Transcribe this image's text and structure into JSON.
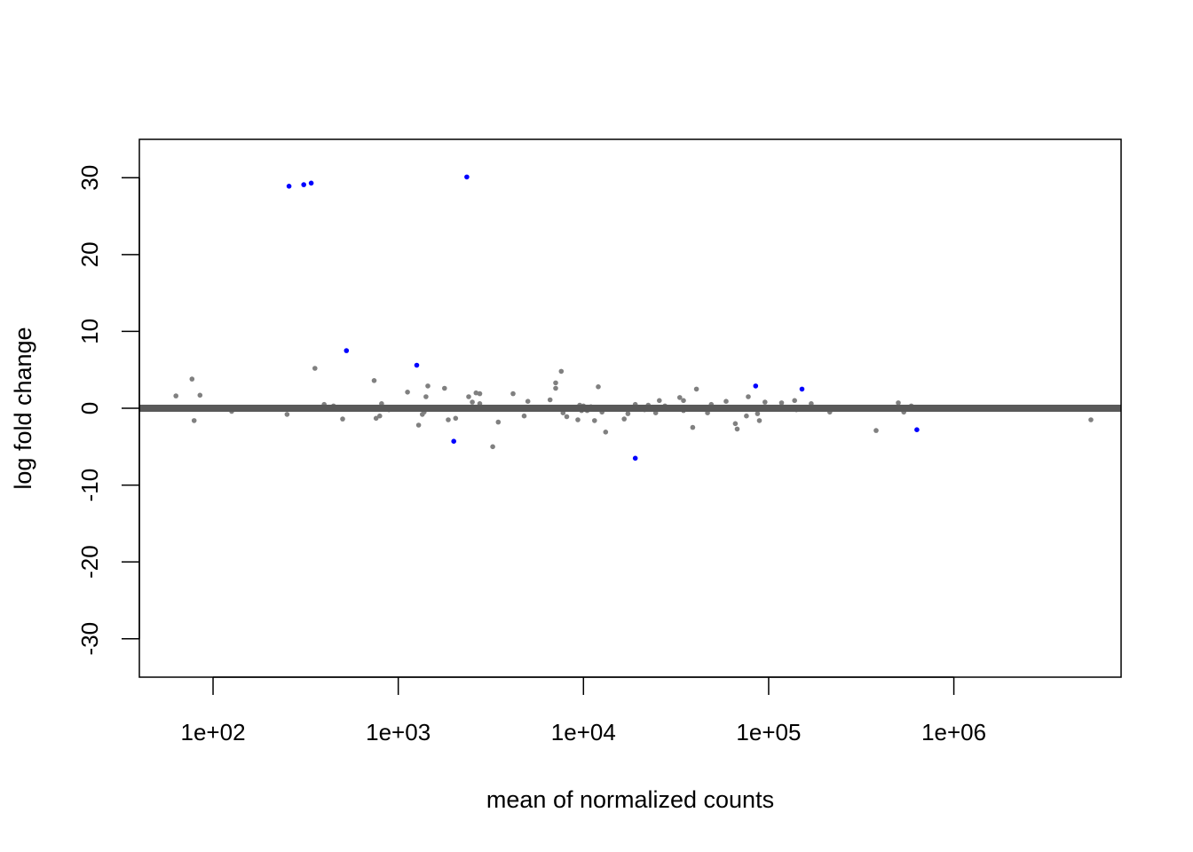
{
  "chart_data": {
    "type": "scatter",
    "title": "",
    "xlabel": "mean of normalized counts",
    "ylabel": "log fold change",
    "xscale": "log",
    "xlim": [
      40,
      8000000
    ],
    "ylim": [
      -35,
      35
    ],
    "xticks": [
      {
        "value": 100,
        "label": "1e+02"
      },
      {
        "value": 1000,
        "label": "1e+03"
      },
      {
        "value": 10000,
        "label": "1e+04"
      },
      {
        "value": 100000,
        "label": "1e+05"
      },
      {
        "value": 1000000,
        "label": "1e+06"
      }
    ],
    "yticks": [
      {
        "value": -30,
        "label": "-30"
      },
      {
        "value": -20,
        "label": "-20"
      },
      {
        "value": -10,
        "label": "-10"
      },
      {
        "value": 0,
        "label": "0"
      },
      {
        "value": 10,
        "label": "10"
      },
      {
        "value": 20,
        "label": "20"
      },
      {
        "value": 30,
        "label": "30"
      }
    ],
    "reference_line": {
      "y": 0,
      "color": "#595959"
    },
    "box": true,
    "grid": false,
    "series": [
      {
        "color": "#808080",
        "points": [
          [
            63,
            1.6
          ],
          [
            77,
            3.8
          ],
          [
            79,
            -1.6
          ],
          [
            85,
            1.7
          ],
          [
            126,
            -0.4
          ],
          [
            251,
            -0.8
          ],
          [
            355,
            5.2
          ],
          [
            398,
            0.5
          ],
          [
            447,
            0.3
          ],
          [
            501,
            -1.4
          ],
          [
            741,
            3.6
          ],
          [
            759,
            -1.3
          ],
          [
            794,
            -1.0
          ],
          [
            813,
            0.6
          ],
          [
            891,
            -0.2
          ],
          [
            1122,
            2.1
          ],
          [
            1288,
            -2.2
          ],
          [
            1349,
            -0.8
          ],
          [
            1380,
            -0.5
          ],
          [
            1412,
            1.5
          ],
          [
            1445,
            2.9
          ],
          [
            1778,
            2.6
          ],
          [
            1862,
            -1.5
          ],
          [
            2041,
            -1.3
          ],
          [
            2399,
            1.5
          ],
          [
            2512,
            0.8
          ],
          [
            2630,
            2.0
          ],
          [
            2754,
            1.9
          ],
          [
            2754,
            0.6
          ],
          [
            3236,
            -5.0
          ],
          [
            3467,
            -1.8
          ],
          [
            4169,
            1.9
          ],
          [
            4786,
            -1.0
          ],
          [
            5012,
            0.9
          ],
          [
            6310,
            -0.1
          ],
          [
            6607,
            1.1
          ],
          [
            7079,
            3.3
          ],
          [
            7079,
            2.6
          ],
          [
            7586,
            4.8
          ],
          [
            7762,
            -0.6
          ],
          [
            8128,
            -1.1
          ],
          [
            9333,
            -1.5
          ],
          [
            9550,
            0.4
          ],
          [
            9772,
            -0.3
          ],
          [
            10000,
            0.3
          ],
          [
            10471,
            -0.3
          ],
          [
            10965,
            0.2
          ],
          [
            11482,
            -1.6
          ],
          [
            12023,
            2.8
          ],
          [
            12589,
            -0.5
          ],
          [
            13183,
            -3.1
          ],
          [
            16596,
            -1.4
          ],
          [
            17378,
            -0.7
          ],
          [
            19055,
            0.5
          ],
          [
            21380,
            -0.2
          ],
          [
            22387,
            0.4
          ],
          [
            24547,
            -0.6
          ],
          [
            25704,
            1.0
          ],
          [
            27542,
            0.3
          ],
          [
            33113,
            1.4
          ],
          [
            34674,
            1.0
          ],
          [
            34674,
            -0.3
          ],
          [
            38905,
            -2.5
          ],
          [
            40738,
            2.5
          ],
          [
            46774,
            -0.6
          ],
          [
            48978,
            0.5
          ],
          [
            58884,
            0.9
          ],
          [
            66069,
            -2.0
          ],
          [
            67608,
            -2.7
          ],
          [
            75858,
            -1.0
          ],
          [
            77625,
            1.5
          ],
          [
            87096,
            -0.7
          ],
          [
            89125,
            -1.6
          ],
          [
            95499,
            0.8
          ],
          [
            117490,
            0.7
          ],
          [
            138038,
            1.0
          ],
          [
            141254,
            -0.2
          ],
          [
            169824,
            0.6
          ],
          [
            213796,
            -0.5
          ],
          [
            380189,
            -2.9
          ],
          [
            501187,
            0.7
          ],
          [
            537032,
            -0.5
          ],
          [
            588844,
            0.3
          ],
          [
            5495409,
            -1.5
          ]
        ]
      },
      {
        "color": "#0000ff",
        "points": [
          [
            257,
            28.9
          ],
          [
            309,
            29.1
          ],
          [
            339,
            29.3
          ],
          [
            525,
            7.5
          ],
          [
            1259,
            5.6
          ],
          [
            1995,
            -4.3
          ],
          [
            2344,
            30.1
          ],
          [
            19055,
            -6.5
          ],
          [
            85114,
            2.9
          ],
          [
            151356,
            2.5
          ],
          [
            630957,
            -2.8
          ]
        ]
      }
    ]
  }
}
